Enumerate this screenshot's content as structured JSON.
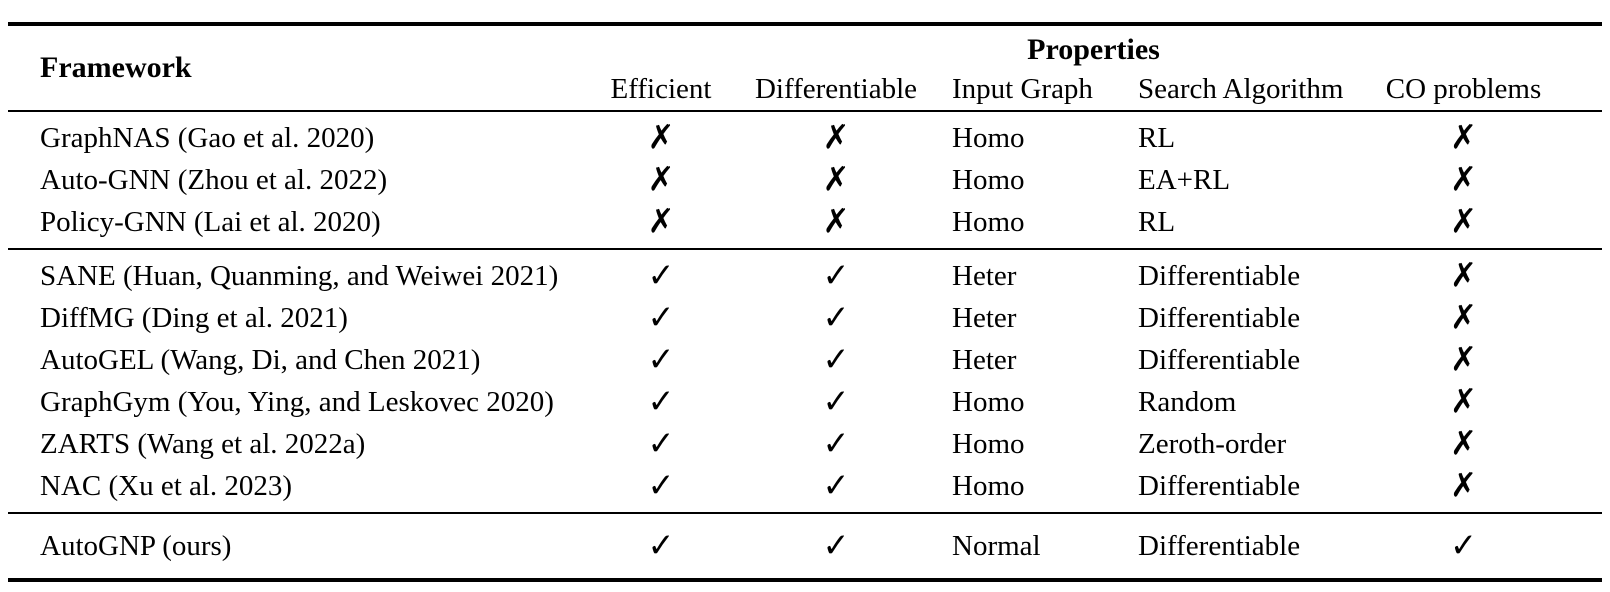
{
  "colors": {
    "text": "#000000",
    "background": "#ffffff",
    "rule": "#000000"
  },
  "marks": {
    "check": "✓",
    "cross": "✗"
  },
  "table": {
    "header": {
      "framework": "Framework",
      "properties_group": "Properties",
      "columns": [
        "Efficient",
        "Differentiable",
        "Input Graph",
        "Search Algorithm",
        "CO problems"
      ]
    },
    "groups": [
      {
        "rows": [
          {
            "framework": "GraphNAS (Gao et al. 2020)",
            "efficient": "cross",
            "differentiable": "cross",
            "input_graph": "Homo",
            "search_algorithm": "RL",
            "co_problems": "cross"
          },
          {
            "framework": "Auto-GNN (Zhou et al. 2022)",
            "efficient": "cross",
            "differentiable": "cross",
            "input_graph": "Homo",
            "search_algorithm": "EA+RL",
            "co_problems": "cross"
          },
          {
            "framework": "Policy-GNN (Lai et al. 2020)",
            "efficient": "cross",
            "differentiable": "cross",
            "input_graph": "Homo",
            "search_algorithm": "RL",
            "co_problems": "cross"
          }
        ]
      },
      {
        "rows": [
          {
            "framework": "SANE (Huan, Quanming, and Weiwei 2021)",
            "efficient": "check",
            "differentiable": "check",
            "input_graph": "Heter",
            "search_algorithm": "Differentiable",
            "co_problems": "cross"
          },
          {
            "framework": "DiffMG (Ding et al. 2021)",
            "efficient": "check",
            "differentiable": "check",
            "input_graph": "Heter",
            "search_algorithm": "Differentiable",
            "co_problems": "cross"
          },
          {
            "framework": "AutoGEL (Wang, Di, and Chen 2021)",
            "efficient": "check",
            "differentiable": "check",
            "input_graph": "Heter",
            "search_algorithm": "Differentiable",
            "co_problems": "cross"
          },
          {
            "framework": "GraphGym (You, Ying, and Leskovec 2020)",
            "efficient": "check",
            "differentiable": "check",
            "input_graph": "Homo",
            "search_algorithm": "Random",
            "co_problems": "cross"
          },
          {
            "framework": "ZARTS (Wang et al. 2022a)",
            "efficient": "check",
            "differentiable": "check",
            "input_graph": "Homo",
            "search_algorithm": "Zeroth-order",
            "co_problems": "cross"
          },
          {
            "framework": "NAC (Xu et al. 2023)",
            "efficient": "check",
            "differentiable": "check",
            "input_graph": "Homo",
            "search_algorithm": "Differentiable",
            "co_problems": "cross"
          }
        ]
      },
      {
        "rows": [
          {
            "framework": "AutoGNP (ours)",
            "efficient": "check",
            "differentiable": "check",
            "input_graph": "Normal",
            "search_algorithm": "Differentiable",
            "co_problems": "check"
          }
        ]
      }
    ]
  }
}
